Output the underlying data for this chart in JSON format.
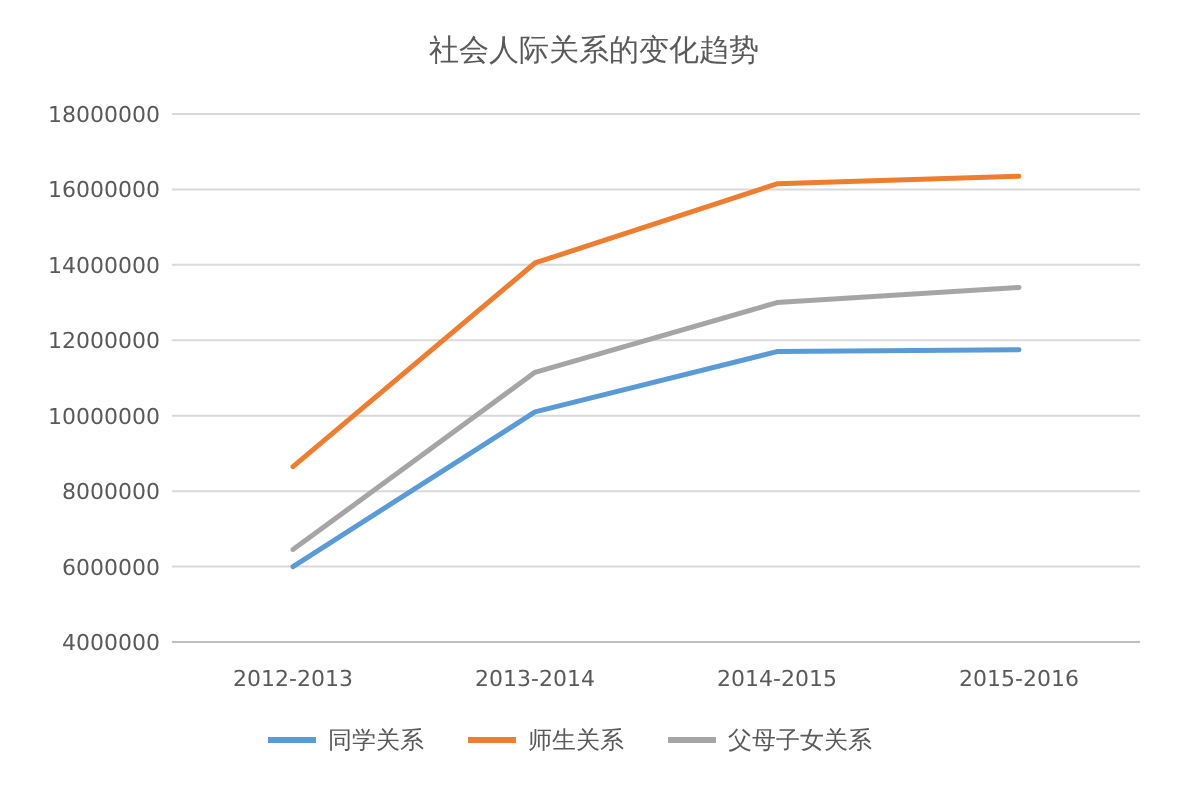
{
  "chart_data": {
    "type": "line",
    "title": "社会人际关系的变化趋势",
    "categories": [
      "2012-2013",
      "2013-2014",
      "2014-2015",
      "2015-2016"
    ],
    "series": [
      {
        "name": "同学关系",
        "color": "#5b9bd5",
        "values": [
          6000000,
          10100000,
          11700000,
          11750000
        ]
      },
      {
        "name": "师生关系",
        "color": "#ed7d31",
        "values": [
          8650000,
          14050000,
          16150000,
          16350000
        ]
      },
      {
        "name": "父母子女关系",
        "color": "#a5a5a5",
        "values": [
          6450000,
          11150000,
          13000000,
          13400000
        ]
      }
    ],
    "ylim": [
      4000000,
      18000000
    ],
    "yticks": [
      4000000,
      6000000,
      8000000,
      10000000,
      12000000,
      14000000,
      16000000,
      18000000
    ],
    "grid": "y",
    "legend": "bottom",
    "marker": "none",
    "line_style": "solid"
  }
}
